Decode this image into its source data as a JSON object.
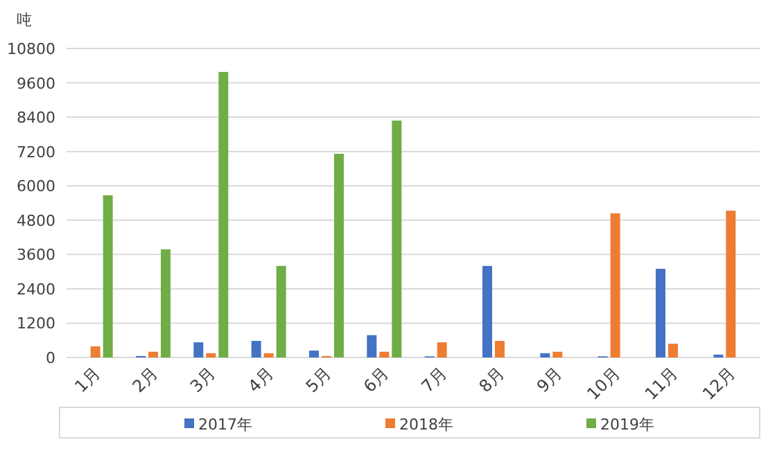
{
  "chart_data": {
    "type": "bar",
    "ylabel": "吨",
    "categories": [
      "1月",
      "2月",
      "3月",
      "4月",
      "5月",
      "6月",
      "7月",
      "8月",
      "9月",
      "10月",
      "11月",
      "12月"
    ],
    "series": [
      {
        "name": "2017年",
        "color": "#4472c4",
        "values": [
          null,
          50,
          530,
          580,
          240,
          780,
          40,
          3200,
          150,
          40,
          3100,
          100
        ]
      },
      {
        "name": "2018年",
        "color": "#ed7d31",
        "values": [
          390,
          200,
          150,
          150,
          50,
          200,
          530,
          580,
          200,
          5040,
          480,
          5130
        ]
      },
      {
        "name": "2019年",
        "color": "#70ad47",
        "values": [
          5670,
          3780,
          9980,
          3200,
          7120,
          8280,
          null,
          null,
          null,
          null,
          null,
          null
        ]
      }
    ],
    "ylim": [
      0,
      10800
    ],
    "yticks": [
      0,
      1200,
      2400,
      3600,
      4800,
      6000,
      7200,
      8400,
      9600,
      10800
    ],
    "grid": "y",
    "legend": "bottom"
  }
}
